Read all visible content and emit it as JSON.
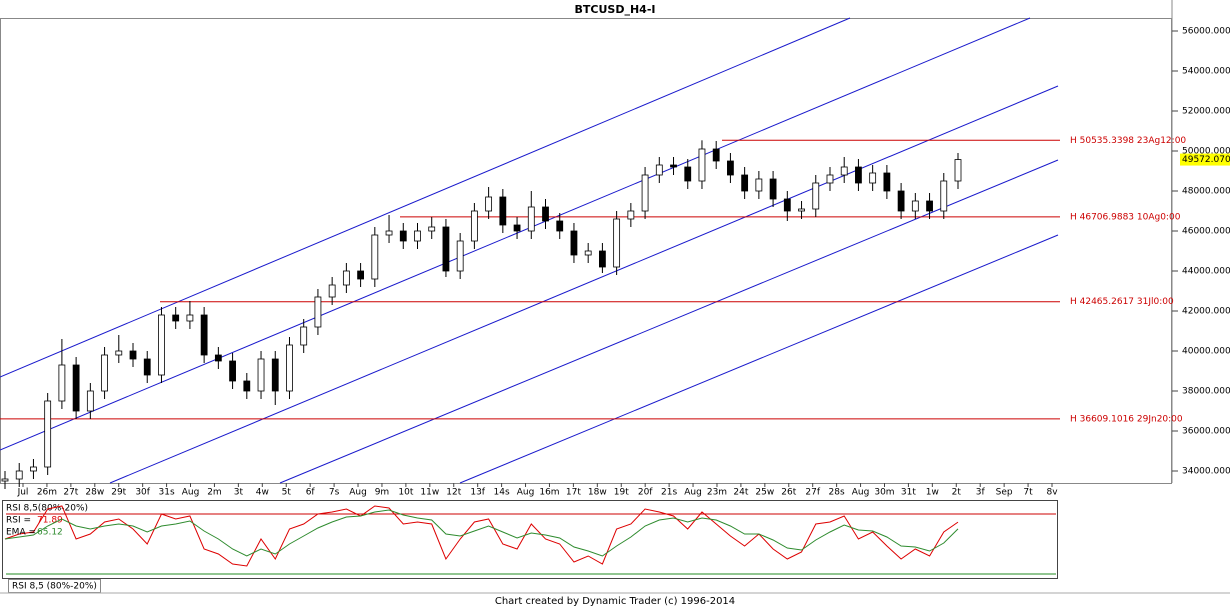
{
  "chart_data": [
    {
      "type": "candlestick",
      "title": "BTCUSD_H4-I",
      "time_labels": [
        "Jul",
        "26m",
        "27t",
        "28w",
        "29t",
        "30f",
        "31s",
        "Aug",
        "2m",
        "3t",
        "4w",
        "5t",
        "6f",
        "7s",
        "Aug",
        "9m",
        "10t",
        "11w",
        "12t",
        "13f",
        "14s",
        "Aug",
        "16m",
        "17t",
        "18w",
        "19t",
        "20f",
        "21s",
        "Aug",
        "23m",
        "24t",
        "25w",
        "26t",
        "27f",
        "28s",
        "Aug",
        "30m",
        "31t",
        "1w",
        "2t",
        "3f",
        "Sep",
        "7t",
        "8v"
      ],
      "open": [
        33500,
        33600,
        34000,
        34200,
        37500,
        39300,
        37000,
        38000,
        39800,
        40000,
        39600,
        38800,
        41800,
        41500,
        41800,
        39800,
        39500,
        38500,
        38000,
        39600,
        38000,
        40300,
        41200,
        42700,
        43300,
        44000,
        43600,
        45800,
        46000,
        45500,
        46000,
        46200,
        44000,
        45500,
        47000,
        47700,
        46300,
        46000,
        47200,
        46500,
        46000,
        44800,
        45000,
        44200,
        46600,
        47000,
        48800,
        49300,
        49200,
        48500,
        50100,
        49500,
        48800,
        48000,
        48600,
        47600,
        47000,
        47100,
        48400,
        48800,
        49200,
        48400,
        48900,
        48000,
        47000,
        47500,
        47000,
        48500
      ],
      "high": [
        34000,
        34400,
        34600,
        37900,
        40600,
        39700,
        38400,
        40200,
        40800,
        40400,
        40000,
        42200,
        42200,
        42500,
        42200,
        40200,
        39900,
        38900,
        40000,
        40000,
        40700,
        41600,
        43100,
        43700,
        44400,
        44400,
        46200,
        46800,
        46400,
        46400,
        46700,
        46600,
        45900,
        47400,
        48200,
        48100,
        46700,
        48000,
        47600,
        46900,
        46400,
        45400,
        45400,
        47000,
        47400,
        49200,
        49700,
        49700,
        49600,
        50535,
        50500,
        49900,
        49200,
        49000,
        49000,
        48000,
        47500,
        48800,
        49200,
        49700,
        49600,
        49300,
        49300,
        48400,
        47900,
        47900,
        48900,
        49900
      ],
      "low": [
        33100,
        33200,
        33600,
        33800,
        37100,
        36600,
        36600,
        37600,
        39400,
        39200,
        38400,
        38400,
        41100,
        41100,
        39400,
        39100,
        38100,
        37600,
        37600,
        37300,
        37600,
        39900,
        40800,
        42300,
        42900,
        43200,
        43200,
        45400,
        45100,
        45100,
        45600,
        43700,
        43600,
        45100,
        46600,
        45900,
        45600,
        45600,
        46100,
        45600,
        44400,
        44400,
        43900,
        43800,
        46200,
        46600,
        48400,
        48800,
        48100,
        48100,
        49100,
        48400,
        47600,
        47600,
        47200,
        46500,
        46600,
        46700,
        48000,
        48400,
        48000,
        48000,
        47600,
        46600,
        46600,
        46600,
        46600,
        48100
      ],
      "close": [
        33600,
        34000,
        34200,
        37500,
        39300,
        37000,
        38000,
        39800,
        40000,
        39600,
        38800,
        41800,
        41500,
        41800,
        39800,
        39500,
        38500,
        38000,
        39600,
        38000,
        40300,
        41200,
        42700,
        43300,
        44000,
        43600,
        45800,
        46000,
        45500,
        46000,
        46200,
        44000,
        45500,
        47000,
        47700,
        46300,
        46000,
        47200,
        46500,
        46000,
        44800,
        45000,
        44200,
        46600,
        47000,
        48800,
        49300,
        49200,
        48500,
        50100,
        49500,
        48800,
        48000,
        48600,
        47600,
        47000,
        47100,
        48400,
        48800,
        49200,
        48400,
        48900,
        48000,
        47000,
        47500,
        47000,
        48500,
        49572.07
      ],
      "ylim": [
        33400,
        56650
      ],
      "yticks": [
        {
          "value": 34000,
          "label": "34000.0000"
        },
        {
          "value": 36000,
          "label": "36000.0000"
        },
        {
          "value": 38000,
          "label": "38000.0000"
        },
        {
          "value": 40000,
          "label": "40000.0000"
        },
        {
          "value": 42000,
          "label": "42000.0000"
        },
        {
          "value": 44000,
          "label": "44000.0000"
        },
        {
          "value": 46000,
          "label": "46000.0000"
        },
        {
          "value": 48000,
          "label": "48000.0000"
        },
        {
          "value": 50000,
          "label": "50000.0000"
        },
        {
          "value": 52000,
          "label": "52000.0000"
        },
        {
          "value": 54000,
          "label": "54000.0000"
        },
        {
          "value": 56000,
          "label": "56000.0000"
        }
      ],
      "levels": [
        {
          "value": 50535.3398,
          "label": "H 50535.3398 23Ag12:00"
        },
        {
          "value": 46706.9883,
          "label": "H 46706.9883 10Ag0:00"
        },
        {
          "value": 42465.2617,
          "label": "H 42465.2617 31Jl0:00"
        },
        {
          "value": 36609.1016,
          "label": "H 36609.1016 29Jn20:00"
        }
      ],
      "last_price": {
        "value": 49572.07,
        "label": "49572.070"
      },
      "up_color": "#ffffff",
      "down_color": "#000000",
      "level_color": "#cc0000"
    },
    {
      "type": "line",
      "title": "RSI 8,5(80%-20%)",
      "tab": "RSI 8,5 (80%-20%)",
      "ylim": [
        16,
        94
      ],
      "levels": [
        {
          "value": 80,
          "color": "#cc0000"
        },
        {
          "value": 20,
          "color": "#228b22"
        }
      ],
      "series": [
        {
          "name": "RSI =",
          "color": "#dd0000",
          "values": [
            55,
            60,
            62,
            85,
            88,
            55,
            60,
            72,
            75,
            65,
            50,
            80,
            75,
            78,
            45,
            40,
            30,
            28,
            55,
            35,
            65,
            70,
            80,
            82,
            85,
            78,
            88,
            86,
            70,
            72,
            70,
            35,
            55,
            72,
            75,
            50,
            45,
            70,
            55,
            50,
            32,
            38,
            30,
            65,
            70,
            85,
            82,
            78,
            65,
            82,
            70,
            58,
            48,
            60,
            45,
            35,
            42,
            70,
            72,
            78,
            55,
            62,
            48,
            35,
            45,
            38,
            62,
            71.89
          ]
        },
        {
          "name": "EMA =",
          "color": "#2e8b2e",
          "values": [
            55,
            57,
            59,
            68,
            75,
            68,
            65,
            68,
            70,
            68,
            62,
            68,
            70,
            73,
            63,
            55,
            45,
            38,
            45,
            40,
            50,
            58,
            66,
            72,
            77,
            78,
            82,
            84,
            79,
            76,
            74,
            60,
            58,
            63,
            68,
            62,
            56,
            61,
            59,
            56,
            47,
            43,
            38,
            48,
            57,
            68,
            74,
            76,
            72,
            76,
            74,
            68,
            60,
            60,
            54,
            46,
            44,
            54,
            62,
            69,
            64,
            63,
            57,
            48,
            47,
            43,
            51,
            65.12
          ]
        }
      ]
    }
  ],
  "footer": "Chart created by Dynamic Trader  (c) 1996-2014"
}
